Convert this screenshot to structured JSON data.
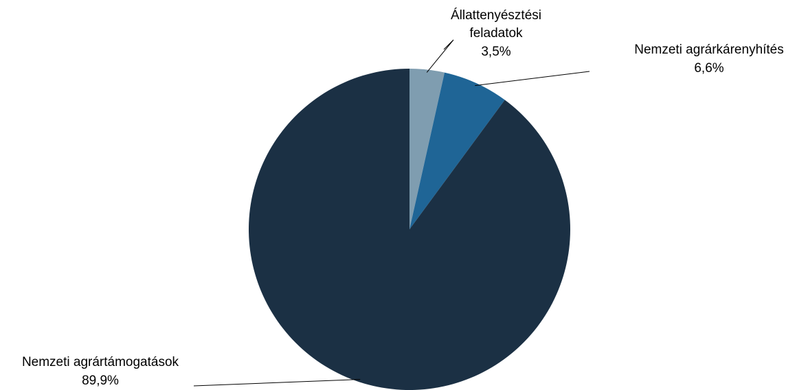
{
  "chart_data": {
    "type": "pie",
    "slices": [
      {
        "category": "Állattenyésztési feladatok",
        "label_lines": [
          "Állattenyésztési",
          "feladatok"
        ],
        "value": 3.5,
        "value_label": "3,5%",
        "color": "#7f9db0"
      },
      {
        "category": "Nemzeti agrárkárenyhítés",
        "label_lines": [
          "Nemzeti agrárkárenyhítés"
        ],
        "value": 6.6,
        "value_label": "6,6%",
        "color": "#1f6596"
      },
      {
        "category": "Nemzeti agrártámogatások",
        "label_lines": [
          "Nemzeti agrártámogatások"
        ],
        "value": 89.9,
        "value_label": "89,9%",
        "color": "#1b3044"
      }
    ],
    "start_angle_deg": 0,
    "direction": "clockwise",
    "legend": "none",
    "data_labels": "outside with leader lines"
  }
}
